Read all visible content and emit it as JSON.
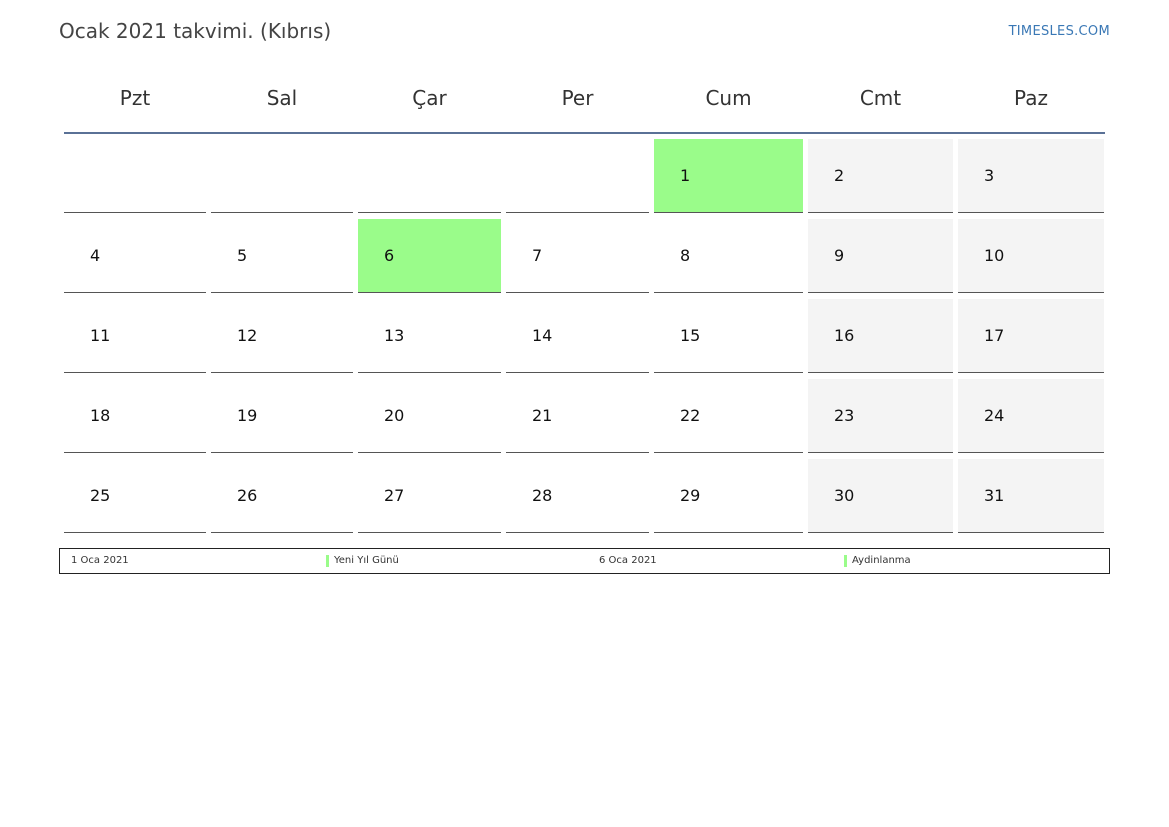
{
  "header": {
    "title": "Ocak 2021 takvimi. (Kıbrıs)",
    "brand": "TIMESLES.COM"
  },
  "colors": {
    "holiday": "#9afc8a",
    "weekend": "#f4f4f4",
    "header_rule": "#5a7196",
    "brand": "#3a78b5"
  },
  "calendar": {
    "weekdays": [
      "Pzt",
      "Sal",
      "Çar",
      "Per",
      "Cum",
      "Cmt",
      "Paz"
    ],
    "weeks": [
      [
        "",
        "",
        "",
        "",
        "1",
        "2",
        "3"
      ],
      [
        "4",
        "5",
        "6",
        "7",
        "8",
        "9",
        "10"
      ],
      [
        "11",
        "12",
        "13",
        "14",
        "15",
        "16",
        "17"
      ],
      [
        "18",
        "19",
        "20",
        "21",
        "22",
        "23",
        "24"
      ],
      [
        "25",
        "26",
        "27",
        "28",
        "29",
        "30",
        "31"
      ]
    ],
    "holidays": [
      "1",
      "6"
    ]
  },
  "legend": {
    "items": [
      {
        "date": "1 Oca 2021",
        "name": "Yeni Yıl Günü"
      },
      {
        "date": "6 Oca 2021",
        "name": "Aydinlanma"
      }
    ]
  }
}
